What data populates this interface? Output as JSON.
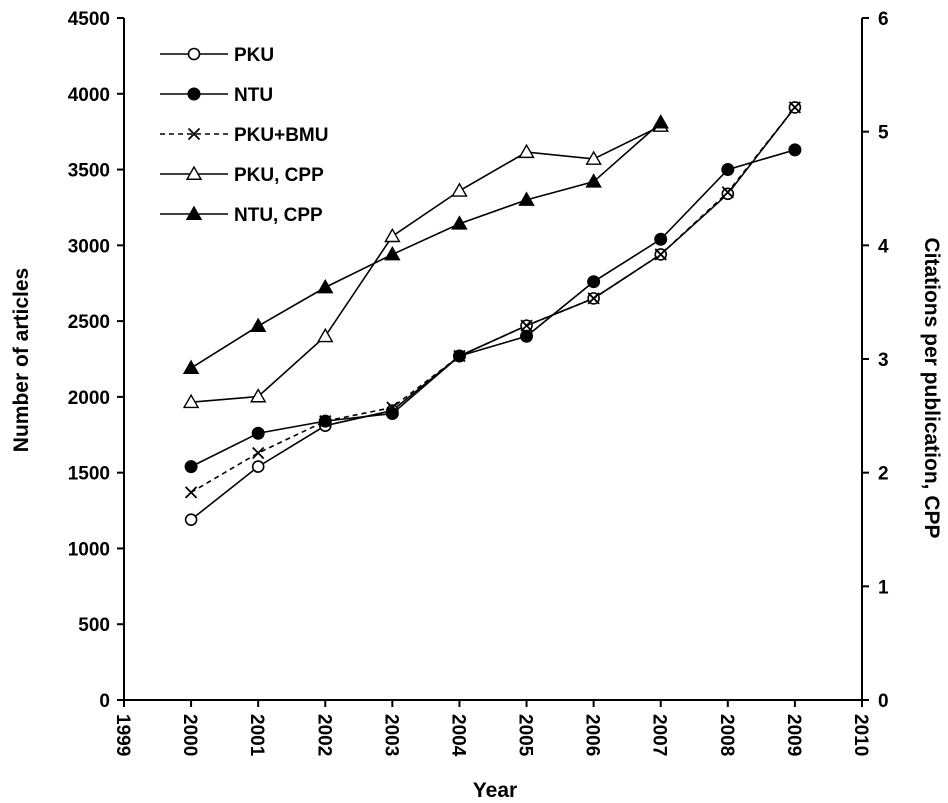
{
  "chart_data": {
    "type": "line",
    "xlabel": "Year",
    "ylabel": "Number of articles",
    "y2label": "Citations per publication, CPP",
    "xlim": [
      1999,
      2010
    ],
    "ylim": [
      0,
      4500
    ],
    "y2lim": [
      0,
      6
    ],
    "x_ticks": [
      "1999",
      "2000",
      "2001",
      "2002",
      "2003",
      "2004",
      "2005",
      "2006",
      "2007",
      "2008",
      "2009",
      "2010"
    ],
    "y_ticks": [
      "0",
      "500",
      "1000",
      "1500",
      "2000",
      "2500",
      "3000",
      "3500",
      "4000",
      "4500"
    ],
    "y2_ticks": [
      "0",
      "1",
      "2",
      "3",
      "4",
      "5",
      "6"
    ],
    "grid": false,
    "legend_position": "top-left",
    "series": [
      {
        "name": "PKU",
        "axis": "left",
        "marker": "open-circle",
        "line": "solid",
        "x": [
          2000,
          2001,
          2002,
          2003,
          2004,
          2005,
          2006,
          2007,
          2008,
          2009
        ],
        "values": [
          1190,
          1540,
          1810,
          1910,
          2270,
          2470,
          2650,
          2940,
          3340,
          3910
        ]
      },
      {
        "name": "NTU",
        "axis": "left",
        "marker": "filled-circle",
        "line": "solid",
        "x": [
          2000,
          2001,
          2002,
          2003,
          2004,
          2005,
          2006,
          2007,
          2008,
          2009
        ],
        "values": [
          1540,
          1760,
          1840,
          1890,
          2270,
          2400,
          2760,
          3040,
          3500,
          3630
        ]
      },
      {
        "name": "PKU+BMU",
        "axis": "left",
        "marker": "cross",
        "line": "dashed",
        "x": [
          2000,
          2001,
          2002,
          2003,
          2004,
          2005,
          2006,
          2007,
          2008,
          2009
        ],
        "values": [
          1370,
          1630,
          1840,
          1930,
          2270,
          2470,
          2650,
          2940,
          3350,
          3910
        ]
      },
      {
        "name": "PKU, CPP",
        "axis": "right",
        "marker": "open-triangle",
        "line": "solid",
        "x": [
          2000,
          2001,
          2002,
          2003,
          2004,
          2005,
          2006,
          2007
        ],
        "values": [
          2.62,
          2.67,
          3.2,
          4.08,
          4.48,
          4.82,
          4.76,
          5.05
        ]
      },
      {
        "name": "NTU, CPP",
        "axis": "right",
        "marker": "filled-triangle",
        "line": "solid",
        "x": [
          2000,
          2001,
          2002,
          2003,
          2004,
          2005,
          2006,
          2007
        ],
        "values": [
          2.92,
          3.29,
          3.63,
          3.92,
          4.19,
          4.4,
          4.56,
          5.08
        ]
      }
    ]
  }
}
